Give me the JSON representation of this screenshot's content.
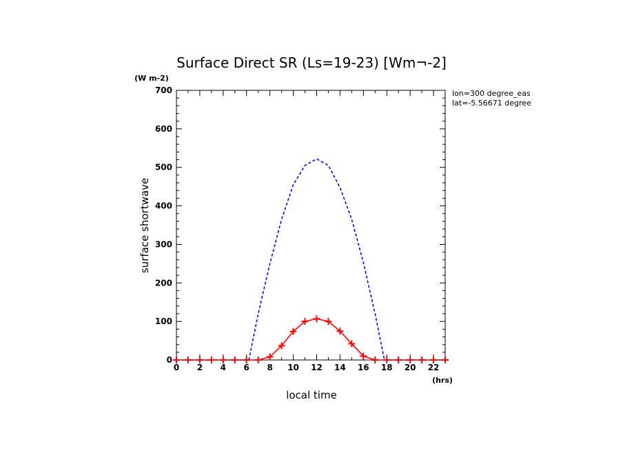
{
  "chart_data": {
    "type": "line",
    "title": "Surface Direct SR (Ls=19-23) [Wm¬-2]",
    "xlabel": "local time",
    "ylabel": "surface shortwave",
    "x_unit": "(hrs)",
    "y_unit": "(W m-2)",
    "xlim": [
      0,
      23
    ],
    "ylim": [
      0,
      700
    ],
    "xticks": [
      0,
      2,
      4,
      6,
      8,
      10,
      12,
      14,
      16,
      18,
      20,
      22
    ],
    "yticks": [
      0,
      100,
      200,
      300,
      400,
      500,
      600,
      700
    ],
    "annotations": [
      "lon=300 degree_eas",
      "lat=-5.56671 degree"
    ],
    "legend": "none",
    "series": [
      {
        "color": "#0000ff",
        "style": "dashed",
        "marker": "none",
        "x": [
          0,
          1,
          2,
          3,
          4,
          5,
          6,
          6.2,
          7,
          8,
          9,
          10,
          11,
          12,
          13,
          14,
          15,
          16,
          17,
          17.8,
          18,
          19,
          20,
          21,
          22,
          23
        ],
        "y": [
          0,
          0,
          0,
          0,
          0,
          0,
          0,
          0,
          120,
          250,
          365,
          455,
          505,
          522,
          505,
          448,
          365,
          253,
          120,
          0,
          0,
          0,
          0,
          0,
          0,
          0
        ]
      },
      {
        "color": "#ff0000",
        "style": "solid",
        "marker": "plus",
        "x": [
          0,
          1,
          2,
          3,
          4,
          5,
          6,
          7,
          8,
          9,
          10,
          11,
          12,
          13,
          14,
          15,
          16,
          17,
          18,
          19,
          20,
          21,
          22,
          23
        ],
        "y": [
          0,
          0,
          0,
          0,
          0,
          0,
          0,
          0,
          8,
          37,
          74,
          100,
          107,
          100,
          75,
          42,
          10,
          0,
          0,
          0,
          0,
          0,
          0,
          0
        ]
      }
    ]
  }
}
